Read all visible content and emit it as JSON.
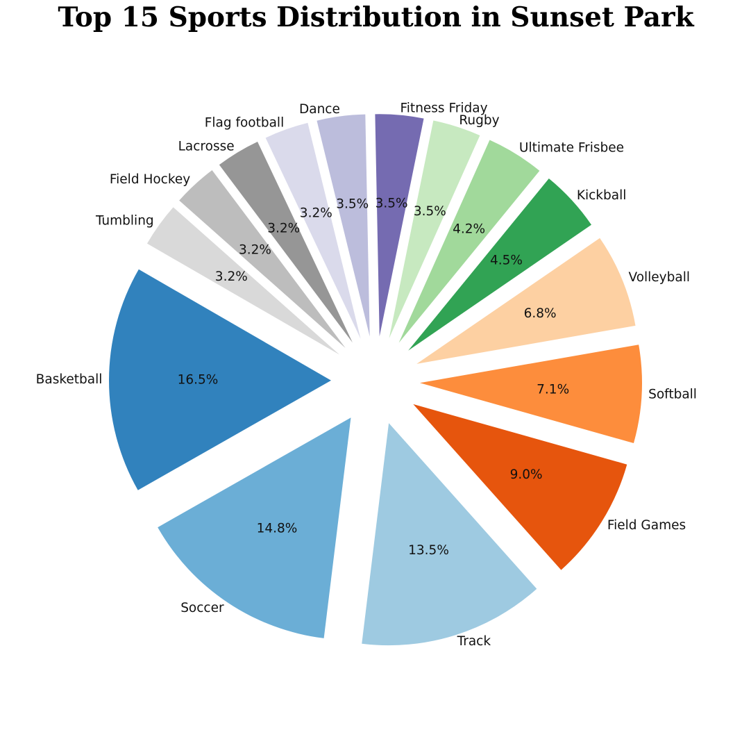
{
  "chart_data": {
    "type": "pie",
    "title": "Top 15 Sports Distribution in Sunset Park",
    "slices": [
      {
        "label": "Basketball",
        "value": 16.5,
        "pct_label": "16.5%",
        "color": "#3182bd"
      },
      {
        "label": "Soccer",
        "value": 14.8,
        "pct_label": "14.8%",
        "color": "#6baed6"
      },
      {
        "label": "Track",
        "value": 13.5,
        "pct_label": "13.5%",
        "color": "#9ecae1"
      },
      {
        "label": "Field Games",
        "value": 9.0,
        "pct_label": "9.0%",
        "color": "#e6550d"
      },
      {
        "label": "Softball",
        "value": 7.1,
        "pct_label": "7.1%",
        "color": "#fd8d3c"
      },
      {
        "label": "Volleyball",
        "value": 6.8,
        "pct_label": "6.8%",
        "color": "#fdd0a2"
      },
      {
        "label": "Kickball",
        "value": 4.5,
        "pct_label": "4.5%",
        "color": "#31a354"
      },
      {
        "label": "Ultimate Frisbee",
        "value": 4.2,
        "pct_label": "4.2%",
        "color": "#a1d99b"
      },
      {
        "label": "Rugby",
        "value": 3.5,
        "pct_label": "3.5%",
        "color": "#c7e9c0"
      },
      {
        "label": "Fitness Friday",
        "value": 3.5,
        "pct_label": "3.5%",
        "color": "#756bb1"
      },
      {
        "label": "Dance",
        "value": 3.5,
        "pct_label": "3.5%",
        "color": "#bcbddc"
      },
      {
        "label": "Flag football",
        "value": 3.2,
        "pct_label": "3.2%",
        "color": "#dadaeb"
      },
      {
        "label": "Lacrosse",
        "value": 3.2,
        "pct_label": "3.2%",
        "color": "#969696"
      },
      {
        "label": "Field Hockey",
        "value": 3.2,
        "pct_label": "3.2%",
        "color": "#bdbdbd"
      },
      {
        "label": "Tumbling",
        "value": 3.2,
        "pct_label": "3.2%",
        "color": "#d9d9d9"
      }
    ],
    "start_angle_deg": 150,
    "direction": "counterclockwise",
    "exploded": true,
    "legend": "none"
  }
}
